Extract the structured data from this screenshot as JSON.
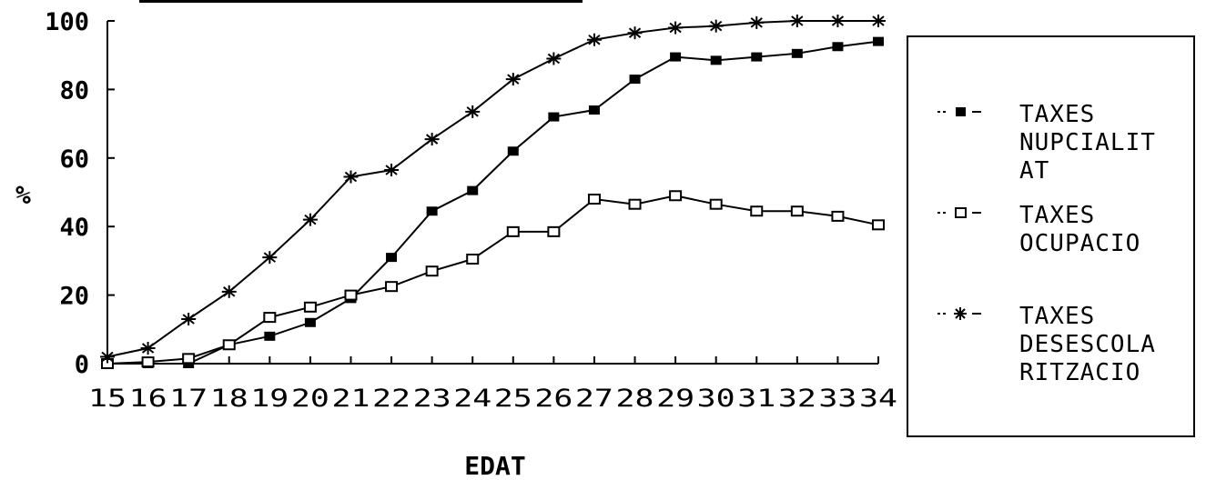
{
  "chart_data": {
    "type": "line",
    "title": "",
    "xlabel": "EDAT",
    "ylabel": "%",
    "ylim": [
      0,
      100
    ],
    "yticks": [
      "0",
      "20",
      "40",
      "60",
      "80",
      "100"
    ],
    "categories": [
      "15",
      "16",
      "17",
      "18",
      "19",
      "20",
      "21",
      "22",
      "23",
      "24",
      "25",
      "26",
      "27",
      "28",
      "29",
      "30",
      "31",
      "32",
      "33",
      "34"
    ],
    "grid": false,
    "legend_position": "right",
    "series": [
      {
        "name": "TAXES NUPCIALITAT",
        "label_lines": "TAXES\nNUPCIALIT\nAT",
        "marker": "filled-square",
        "values": [
          0,
          0,
          0,
          5.5,
          8,
          12,
          19,
          31,
          44.5,
          50.5,
          62,
          72,
          74,
          83,
          89.5,
          88.5,
          89.5,
          90.5,
          92.5,
          94
        ]
      },
      {
        "name": "TAXES OCUPACIO",
        "label_lines": "TAXES\nOCUPACIO",
        "marker": "open-square",
        "values": [
          0,
          0.5,
          1.5,
          5.5,
          13.5,
          16.5,
          20,
          22.5,
          27,
          30.5,
          38.5,
          38.5,
          48,
          46.5,
          49,
          46.5,
          44.5,
          44.5,
          43,
          40.5
        ]
      },
      {
        "name": "TAXES DESESCOLARITZACIO",
        "label_lines": "TAXES\nDESESCOLA\nRITZACIO",
        "marker": "asterisk",
        "values": [
          2,
          4.5,
          13,
          21,
          31,
          42,
          54.5,
          56.5,
          65.5,
          73.5,
          83,
          89,
          94.5,
          96.5,
          98,
          98.5,
          99.5,
          100,
          100,
          100
        ]
      }
    ]
  }
}
